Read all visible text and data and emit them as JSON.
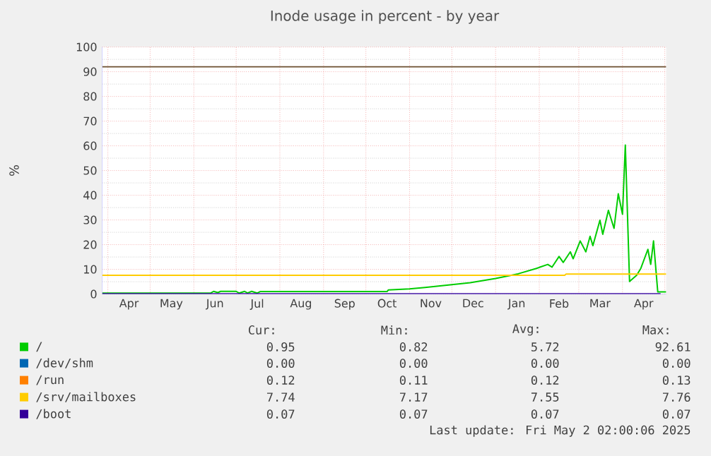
{
  "chart_data": {
    "type": "line",
    "title": "Inode usage in percent - by year",
    "ylabel": "%",
    "xlim": [
      "2024-03-28",
      "2025-05-02"
    ],
    "xticks": [
      {
        "value": "2024-04-01",
        "label": null
      },
      {
        "value": "2024-04-16",
        "label": "Apr"
      },
      {
        "value": "2024-05-01",
        "label": null
      },
      {
        "value": "2024-05-16",
        "label": "May"
      },
      {
        "value": "2024-06-01",
        "label": null
      },
      {
        "value": "2024-06-16",
        "label": "Jun"
      },
      {
        "value": "2024-07-01",
        "label": null
      },
      {
        "value": "2024-07-16",
        "label": "Jul"
      },
      {
        "value": "2024-08-01",
        "label": null
      },
      {
        "value": "2024-08-16",
        "label": "Aug"
      },
      {
        "value": "2024-09-01",
        "label": null
      },
      {
        "value": "2024-09-16",
        "label": "Sep"
      },
      {
        "value": "2024-10-01",
        "label": null
      },
      {
        "value": "2024-10-16",
        "label": "Oct"
      },
      {
        "value": "2024-11-01",
        "label": null
      },
      {
        "value": "2024-11-16",
        "label": "Nov"
      },
      {
        "value": "2024-12-01",
        "label": null
      },
      {
        "value": "2024-12-16",
        "label": "Dec"
      },
      {
        "value": "2025-01-01",
        "label": null
      },
      {
        "value": "2025-01-16",
        "label": "Jan"
      },
      {
        "value": "2025-02-01",
        "label": null
      },
      {
        "value": "2025-02-15",
        "label": "Feb"
      },
      {
        "value": "2025-03-01",
        "label": null
      },
      {
        "value": "2025-03-16",
        "label": "Mar"
      },
      {
        "value": "2025-04-01",
        "label": null
      },
      {
        "value": "2025-04-16",
        "label": "Apr"
      },
      {
        "value": "2025-05-01",
        "label": null
      }
    ],
    "ylim": [
      0,
      100
    ],
    "yticks": [
      0,
      10,
      20,
      30,
      40,
      50,
      60,
      70,
      80,
      90,
      100
    ],
    "grid": true,
    "legend": "bottom",
    "series": [
      {
        "name": "/",
        "color": "#00cc00",
        "x": [
          "2024-03-28",
          "2024-06-13",
          "2024-06-15",
          "2024-06-18",
          "2024-06-20",
          "2024-07-01",
          "2024-07-03",
          "2024-07-07",
          "2024-07-09",
          "2024-07-12",
          "2024-07-16",
          "2024-07-18",
          "2024-10-16",
          "2024-10-17",
          "2024-11-01",
          "2024-11-12",
          "2024-12-01",
          "2024-12-14",
          "2025-01-01",
          "2025-01-17",
          "2025-01-30",
          "2025-02-07",
          "2025-02-10",
          "2025-02-15",
          "2025-02-18",
          "2025-02-23",
          "2025-02-25",
          "2025-03-02",
          "2025-03-06",
          "2025-03-09",
          "2025-03-11",
          "2025-03-16",
          "2025-03-18",
          "2025-03-22",
          "2025-03-26",
          "2025-03-29",
          "2025-04-01",
          "2025-04-03",
          "2025-04-06",
          "2025-04-11",
          "2025-04-14",
          "2025-04-19",
          "2025-04-21",
          "2025-04-23",
          "2025-04-26",
          "2025-05-02"
        ],
        "values": [
          0.4,
          0.4,
          1.1,
          0.6,
          1.1,
          1.1,
          0.4,
          1.1,
          0.4,
          1.1,
          0.4,
          1.0,
          1.0,
          1.7,
          2.1,
          2.7,
          3.8,
          4.6,
          6.3,
          8.2,
          10.4,
          12.0,
          10.9,
          15.2,
          12.8,
          17.1,
          14.3,
          21.5,
          17.1,
          23.4,
          19.6,
          29.9,
          24.2,
          33.9,
          26.6,
          40.6,
          32.3,
          60.3,
          5.1,
          7.6,
          10.4,
          18.1,
          12.0,
          21.5,
          0.9,
          0.9
        ]
      },
      {
        "name": "/dev/shm",
        "color": "#0066b3",
        "values": [
          null,
          null
        ]
      },
      {
        "name": "/run",
        "color": "#ff8000",
        "values": [
          null,
          null
        ]
      },
      {
        "name": "/srv/mailboxes",
        "color": "#ffcc00",
        "x": [
          "2024-03-28",
          "2025-02-19",
          "2025-02-20",
          "2025-05-02"
        ],
        "values": [
          7.6,
          7.6,
          8.1,
          8.1
        ]
      },
      {
        "name": "/boot",
        "color": "#330099",
        "x": [
          "2024-03-28",
          "2025-04-28"
        ],
        "values": [
          0.1,
          0.1
        ]
      }
    ],
    "ref_lines": [
      {
        "axis": "y",
        "value": 92,
        "color": "#6b4e2e"
      }
    ],
    "annotations": [
      "Cur:",
      "Min:",
      "Avg:",
      "Max:",
      "0.95",
      "0.82",
      "5.72",
      "92.61",
      "0.00",
      "0.00",
      "0.00",
      "0.00",
      "0.12",
      "0.11",
      "0.12",
      "0.13",
      "7.74",
      "7.17",
      "7.55",
      "7.76",
      "0.07",
      "0.07",
      "0.07",
      "0.07",
      "Last update: Fri May  2 02:00:06 2025"
    ]
  }
}
